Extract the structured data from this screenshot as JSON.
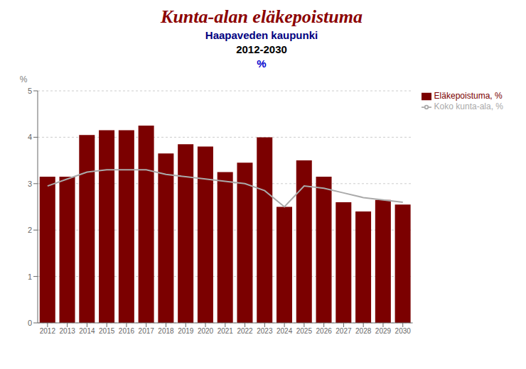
{
  "chart_data": {
    "type": "bar",
    "title": "Kunta-alan eläkepoistuma",
    "subtitle": [
      "Haapaveden kaupunki",
      "2012-2030",
      "%"
    ],
    "ylabel": "%",
    "categories": [
      "2012",
      "2013",
      "2014",
      "2015",
      "2016",
      "2017",
      "2018",
      "2019",
      "2020",
      "2021",
      "2022",
      "2023",
      "2024",
      "2025",
      "2026",
      "2027",
      "2028",
      "2029",
      "2030"
    ],
    "series": [
      {
        "name": "Eläkepoistuma, %",
        "type": "bar",
        "color": "#7B0000",
        "values": [
          3.15,
          3.15,
          4.05,
          4.15,
          4.15,
          4.25,
          3.65,
          3.85,
          3.8,
          3.25,
          3.45,
          4.0,
          2.5,
          3.5,
          3.15,
          2.6,
          2.4,
          2.65,
          2.55
        ]
      },
      {
        "name": "Koko kunta-ala, %",
        "type": "line",
        "color": "#AAAAAA",
        "values": [
          2.95,
          3.1,
          3.25,
          3.3,
          3.3,
          3.3,
          3.2,
          3.15,
          3.1,
          3.05,
          3.0,
          2.85,
          2.5,
          2.95,
          2.9,
          2.8,
          2.7,
          2.65,
          2.6
        ]
      }
    ],
    "ylim": [
      0,
      5
    ],
    "yticks": [
      0,
      1,
      2,
      3,
      4,
      5
    ],
    "grid": true,
    "legend": "right"
  }
}
